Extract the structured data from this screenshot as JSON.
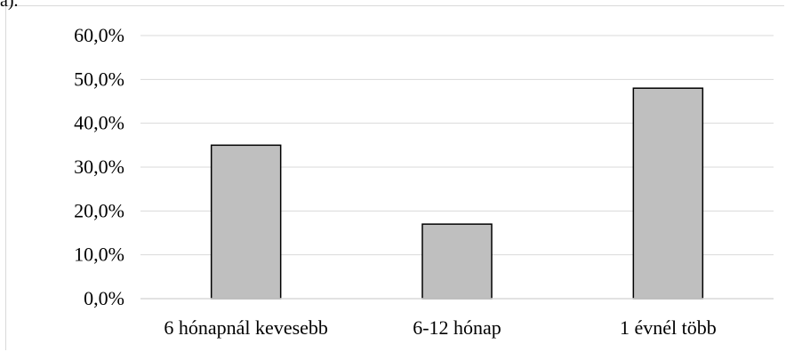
{
  "caption": "a).",
  "chart_data": {
    "type": "bar",
    "categories": [
      "6 hónapnál kevesebb",
      "6-12 hónap",
      "1 évnél több"
    ],
    "values": [
      35.0,
      17.0,
      48.0
    ],
    "ylim": [
      0,
      60
    ],
    "yticks": [
      0,
      10,
      20,
      30,
      40,
      50,
      60
    ],
    "ytick_labels": [
      "0,0%",
      "10,0%",
      "20,0%",
      "30,0%",
      "40,0%",
      "50,0%",
      "60,0%"
    ],
    "bar_color": "#bfbfbf",
    "bar_edge_color": "#000000",
    "grid_color": "#d9d9d9",
    "grid": true,
    "legend": "none"
  }
}
